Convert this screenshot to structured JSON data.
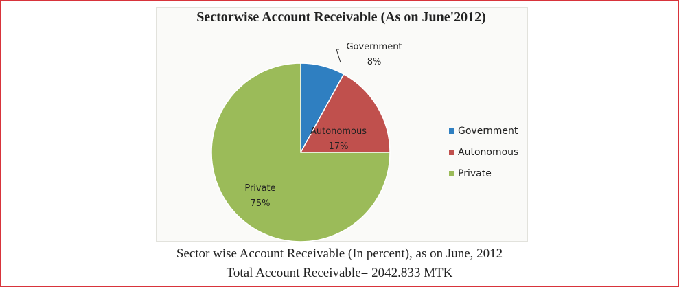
{
  "chart_data": {
    "type": "pie",
    "title": "Sectorwise Account Receivable (As on June'2012)",
    "slices": [
      {
        "label": "Government",
        "value": 8,
        "value_label": "8%",
        "color": "#2f7fc1"
      },
      {
        "label": "Autonomous",
        "value": 17,
        "value_label": "17%",
        "color": "#c0504d"
      },
      {
        "label": "Private",
        "value": 75,
        "value_label": "75%",
        "color": "#9bbb59"
      }
    ],
    "legend": {
      "position": "right",
      "entries": [
        "Government",
        "Autonomous",
        "Private"
      ]
    }
  },
  "captions": {
    "line1": "Sector wise Account Receivable (In percent), as on June, 2012",
    "line2": "Total Account Receivable= 2042.833 MTK"
  }
}
